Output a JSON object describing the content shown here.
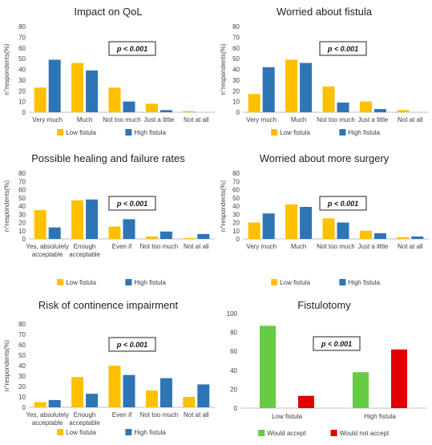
{
  "colors": {
    "low": "#FFC000",
    "high": "#2E75B6",
    "accept": "#66CC44",
    "notaccept": "#E00000",
    "axis": "#BFBFBF",
    "text": "#404040"
  },
  "chart_data": [
    {
      "type": "bar",
      "title": "Impact on QoL",
      "ylabel": "n°respondents(%)",
      "xlabel": "",
      "ylim": [
        0,
        80
      ],
      "yticks": [
        0,
        10,
        20,
        30,
        40,
        50,
        60,
        70,
        80
      ],
      "categories": [
        [
          "Very much"
        ],
        [
          "Much"
        ],
        [
          "Not too much"
        ],
        [
          "Just a little"
        ],
        [
          "Not at all"
        ]
      ],
      "series": [
        {
          "name": "Low fistula",
          "color": "#FFC000",
          "values": [
            23,
            46,
            23,
            8,
            1
          ]
        },
        {
          "name": "High fistula",
          "color": "#2E75B6",
          "values": [
            49,
            39,
            10,
            2,
            0
          ]
        }
      ],
      "annotation": "p < 0.001",
      "legend": "bottom"
    },
    {
      "type": "bar",
      "title": "Worried about fistula",
      "ylabel": "n°respondents(%)",
      "xlabel": "",
      "ylim": [
        0,
        80
      ],
      "yticks": [
        0,
        10,
        20,
        30,
        40,
        50,
        60,
        70,
        80
      ],
      "categories": [
        [
          "Very much"
        ],
        [
          "Much"
        ],
        [
          "Not too much"
        ],
        [
          "Just a little"
        ],
        [
          "Not at all"
        ]
      ],
      "series": [
        {
          "name": "Low fistula",
          "color": "#FFC000",
          "values": [
            17,
            49,
            24,
            10,
            2
          ]
        },
        {
          "name": "High fistula",
          "color": "#2E75B6",
          "values": [
            42,
            46,
            9,
            3,
            0
          ]
        }
      ],
      "annotation": "p < 0.001",
      "legend": "bottom"
    },
    {
      "type": "bar",
      "title": "Possible healing and failure rates",
      "ylabel": "n°respondents(%)",
      "xlabel": "",
      "ylim": [
        0,
        80
      ],
      "yticks": [
        0,
        10,
        20,
        30,
        40,
        50,
        60,
        70,
        80
      ],
      "categories": [
        [
          "Yes, absolutely",
          "acceptable"
        ],
        [
          "Enough",
          "acceptable"
        ],
        [
          "Even if"
        ],
        [
          "Not too much"
        ],
        [
          "Not at all"
        ]
      ],
      "series": [
        {
          "name": "Low fistula",
          "color": "#FFC000",
          "values": [
            35,
            47,
            15,
            3,
            1
          ]
        },
        {
          "name": "High fistula",
          "color": "#2E75B6",
          "values": [
            14,
            48,
            24,
            9,
            6
          ]
        }
      ],
      "annotation": "p < 0.001",
      "legend": "bottom"
    },
    {
      "type": "bar",
      "title": "Worried about more surgery",
      "ylabel": "n°respondents(%)",
      "xlabel": "",
      "ylim": [
        0,
        80
      ],
      "yticks": [
        0,
        10,
        20,
        30,
        40,
        50,
        60,
        70,
        80
      ],
      "categories": [
        [
          "Very much"
        ],
        [
          "Much"
        ],
        [
          "Not too much"
        ],
        [
          "Just a little"
        ],
        [
          "Not at all"
        ]
      ],
      "series": [
        {
          "name": "Low fistula",
          "color": "#FFC000",
          "values": [
            20,
            42,
            25,
            10,
            2
          ]
        },
        {
          "name": "High fistula",
          "color": "#2E75B6",
          "values": [
            31,
            39,
            20,
            7,
            3
          ]
        }
      ],
      "annotation": "p < 0.001",
      "legend": "bottom"
    },
    {
      "type": "bar",
      "title": "Risk of continence impairment",
      "ylabel": "n°respondents(%)",
      "xlabel": "",
      "ylim": [
        0,
        80
      ],
      "yticks": [
        0,
        10,
        20,
        30,
        40,
        50,
        60,
        70,
        80
      ],
      "categories": [
        [
          "Yes, absolutely",
          "acceptable"
        ],
        [
          "Enough",
          "acceptable"
        ],
        [
          "Even if"
        ],
        [
          "Not too much"
        ],
        [
          "Not at all"
        ]
      ],
      "series": [
        {
          "name": "Low fistula",
          "color": "#FFC000",
          "values": [
            5,
            29,
            40,
            16,
            10
          ]
        },
        {
          "name": "High fistula",
          "color": "#2E75B6",
          "values": [
            7,
            13,
            31,
            28,
            22
          ]
        }
      ],
      "annotation": "p < 0.001",
      "legend": "bottom"
    },
    {
      "type": "bar",
      "title": "Fistulotomy",
      "ylabel": "",
      "xlabel": "",
      "ylim": [
        0,
        100
      ],
      "yticks": [
        0,
        20,
        40,
        60,
        80,
        100
      ],
      "categories": [
        [
          "Low fistula"
        ],
        [
          "High fistula"
        ]
      ],
      "series": [
        {
          "name": "Would accept",
          "color": "#66CC44",
          "values": [
            87,
            38
          ]
        },
        {
          "name": "Would not accept",
          "color": "#E00000",
          "values": [
            13,
            62
          ]
        }
      ],
      "annotation": "p < 0.001",
      "legend": "bottom"
    }
  ]
}
